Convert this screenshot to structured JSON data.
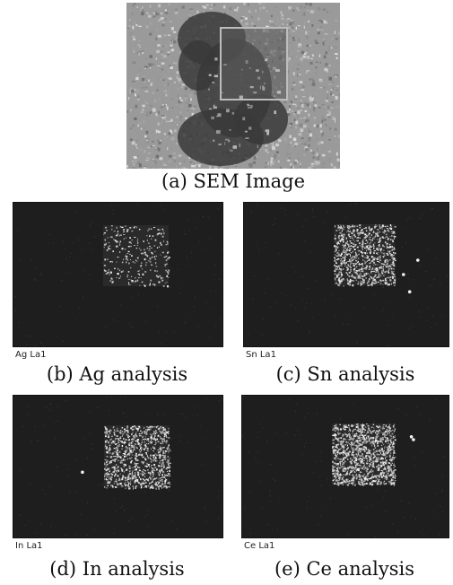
{
  "figure": {
    "sem": {
      "caption": "(a) SEM Image"
    },
    "maps": [
      {
        "key": "ag",
        "element_label": "Ag La1",
        "caption": "(b) Ag analysis",
        "density": 0.12,
        "dots": [],
        "dot_color": "#e8e8e8"
      },
      {
        "key": "sn",
        "element_label": "Sn La1",
        "caption": "(c) Sn analysis",
        "density": 0.42,
        "dots": [
          [
            0.78,
            0.5
          ],
          [
            0.85,
            0.4
          ],
          [
            0.81,
            0.62
          ]
        ],
        "dot_color": "#f4f4f4"
      },
      {
        "key": "in",
        "element_label": "In La1",
        "caption": "(d) In analysis",
        "density": 0.4,
        "dots": [
          [
            0.33,
            0.54
          ]
        ],
        "dot_color": "#f4f4f4"
      },
      {
        "key": "ce",
        "element_label": "Ce La1",
        "caption": "(e) Ce analysis",
        "density": 0.55,
        "dots": [
          [
            0.82,
            0.29
          ],
          [
            0.83,
            0.31
          ]
        ],
        "dot_color": "#f4f4f4"
      }
    ],
    "colors": {
      "map_background": "#1e1e1e",
      "sem_frame": "#bdbdbd"
    }
  }
}
